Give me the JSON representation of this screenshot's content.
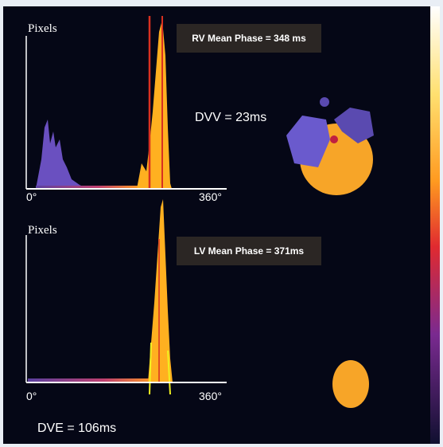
{
  "top_panel": {
    "axis_label": "Pixels",
    "annotation": "RV Mean Phase = 348 ms",
    "bandwidth": "DVV = 23ms",
    "x_start": "0°",
    "x_end": "360°"
  },
  "bottom_panel": {
    "axis_label": "Pixels",
    "annotation": "LV Mean Phase = 371ms",
    "bandwidth": "DVE = 106ms",
    "x_start": "0°",
    "x_end": "360°"
  }
}
